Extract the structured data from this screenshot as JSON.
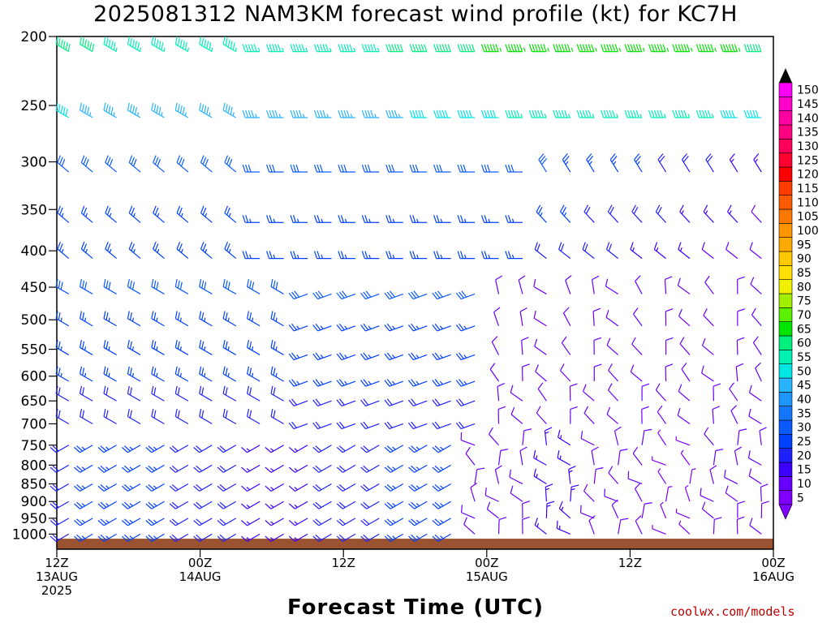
{
  "chart_data": {
    "type": "wind-barb-profile",
    "title": "2025081312 NAM3KM forecast wind profile (kt) for KC7H",
    "xlabel": "Forecast Time (UTC)",
    "credit": "coolwx.com/models",
    "y_axis": {
      "scale": "log",
      "range": [
        200,
        1050
      ],
      "ticks": [
        200,
        250,
        300,
        350,
        400,
        450,
        500,
        550,
        600,
        650,
        700,
        750,
        800,
        850,
        900,
        950,
        1000
      ]
    },
    "x_axis": {
      "range_hours": [
        0,
        60
      ],
      "ticks": [
        {
          "hour": 0,
          "lines": [
            "12Z",
            "13AUG",
            "2025"
          ]
        },
        {
          "hour": 12,
          "lines": [
            "00Z",
            "14AUG"
          ]
        },
        {
          "hour": 24,
          "lines": [
            "12Z"
          ]
        },
        {
          "hour": 36,
          "lines": [
            "00Z",
            "15AUG"
          ]
        },
        {
          "hour": 48,
          "lines": [
            "12Z"
          ]
        },
        {
          "hour": 60,
          "lines": [
            "00Z",
            "16AUG"
          ]
        }
      ]
    },
    "barb_levels": [
      210,
      260,
      310,
      365,
      410,
      460,
      510,
      560,
      610,
      650,
      700,
      750,
      800,
      850,
      900,
      950,
      1000
    ],
    "barb_hours_start": 1,
    "barb_hours_end": 60,
    "barb_hours_step": 2,
    "speed_colorbar": {
      "ticks": [
        5,
        10,
        15,
        20,
        25,
        30,
        35,
        40,
        45,
        50,
        55,
        60,
        65,
        70,
        75,
        80,
        85,
        90,
        95,
        100,
        105,
        110,
        115,
        120,
        125,
        130,
        135,
        140,
        145,
        150
      ],
      "colors": [
        "#7f00ff",
        "#6a00ff",
        "#3c00ff",
        "#2020ff",
        "#0040ff",
        "#0a5aff",
        "#1478ff",
        "#1e96ff",
        "#28b4ff",
        "#00e6e6",
        "#00f0b4",
        "#00f07f",
        "#00e600",
        "#5af000",
        "#a0f000",
        "#f0f000",
        "#ffe000",
        "#ffc800",
        "#ffaa00",
        "#ff9600",
        "#ff7800",
        "#ff5a00",
        "#ff3c00",
        "#ff0000",
        "#ff0030",
        "#ff005a",
        "#ff0080",
        "#ff00a0",
        "#ff00c8",
        "#ff00ff"
      ]
    },
    "terrain": {
      "color": "#9a5230",
      "pressure_hpa": 1015
    }
  }
}
